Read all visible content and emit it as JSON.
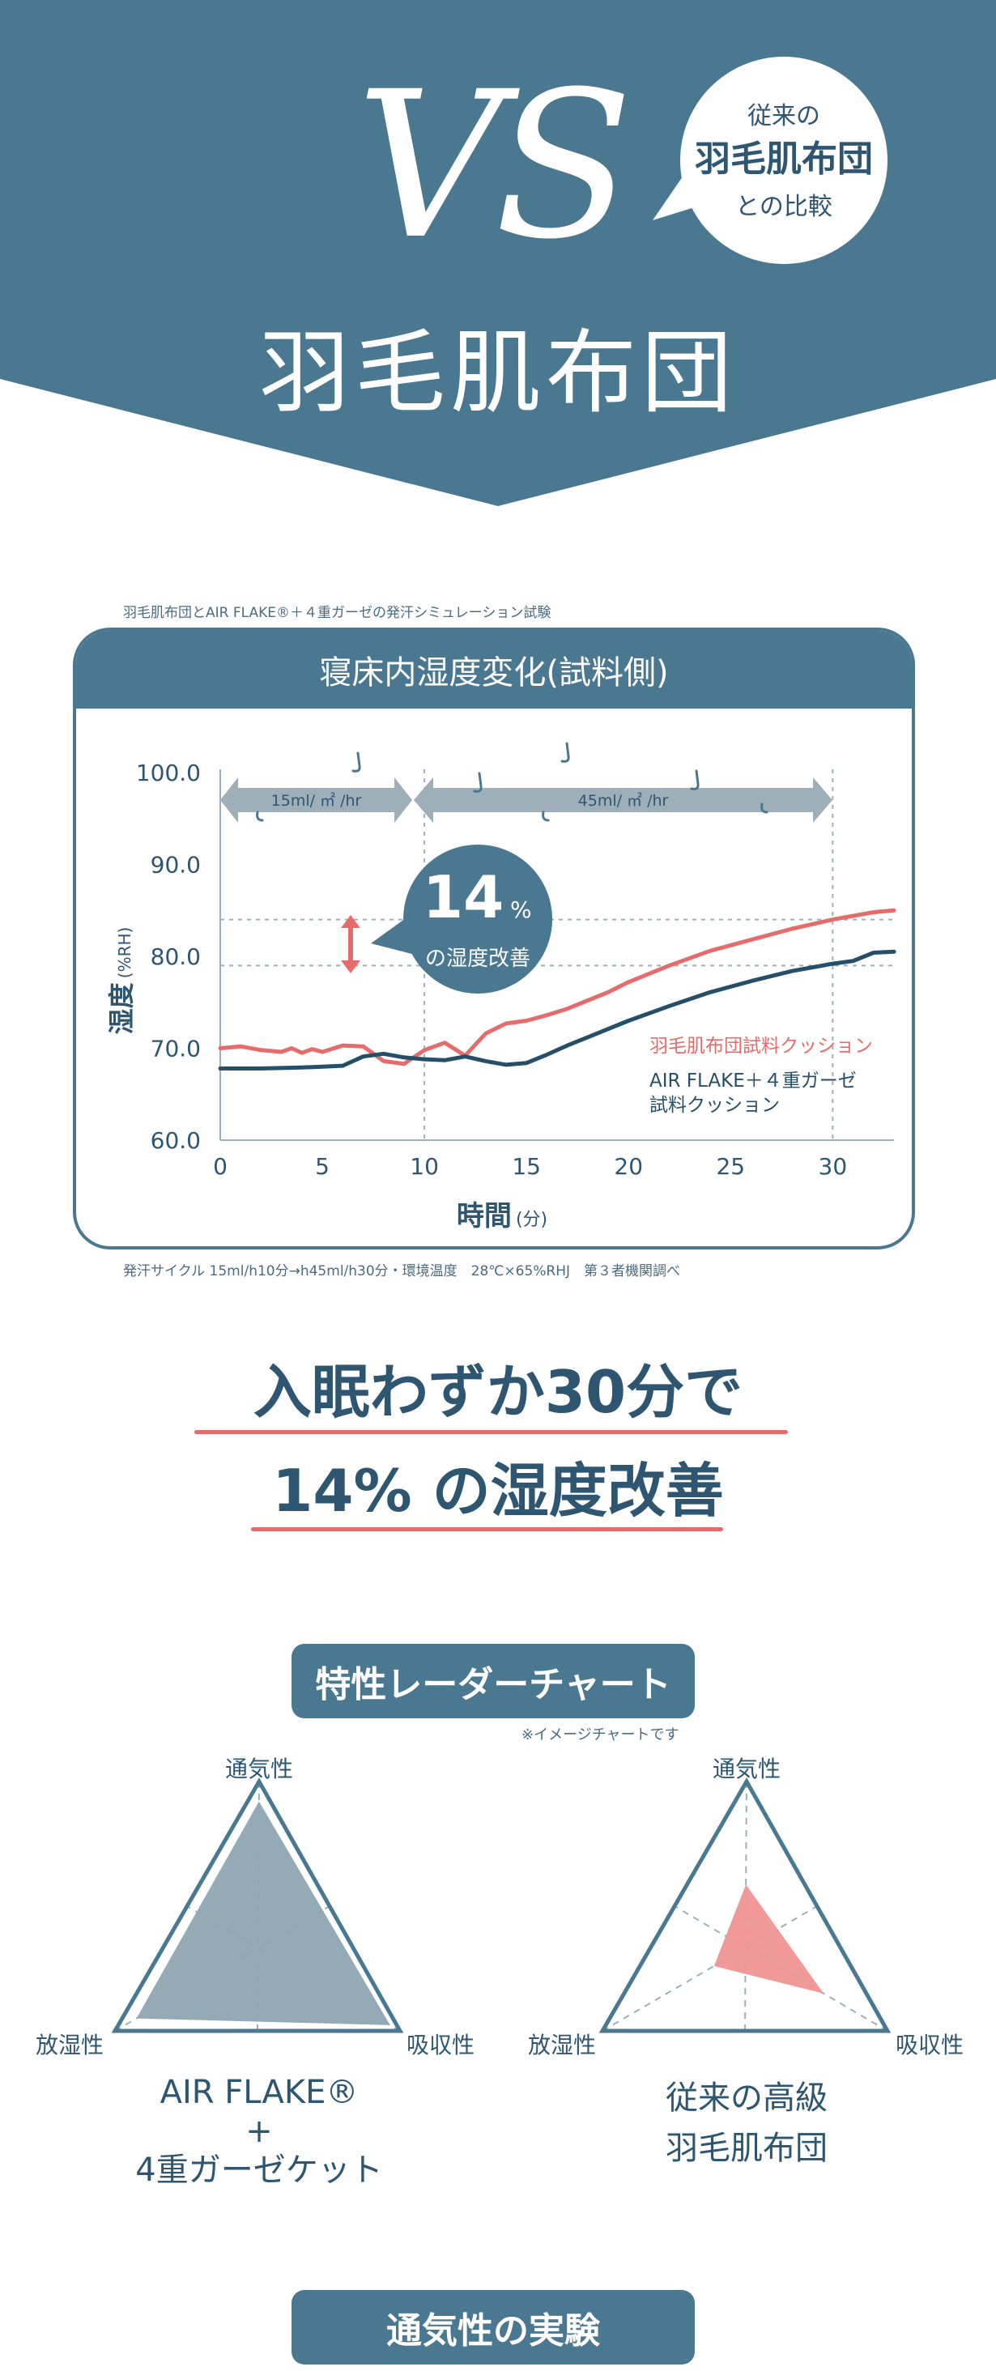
{
  "hero": {
    "vs": "VS",
    "bubble_line1": "従来の",
    "bubble_line2": "羽毛肌布団",
    "bubble_line3": "との比較",
    "title": "羽毛肌布団"
  },
  "humidity_test": {
    "caption_top": "羽毛肌布団とAIR FLAKE®＋４重ガーゼの発汗シミュレーション試験",
    "panel_title": "寝床内湿度変化(試料側)",
    "callout_big": "14",
    "callout_unit": "%",
    "callout_text": "の湿度改善",
    "phase1_label": "15ml/ ㎡ /hr",
    "phase2_label": "45ml/ ㎡ /hr",
    "legend_red": "羽毛肌布団試料クッション",
    "legend_navy_line1": "AIR FLAKE＋４重ガーゼ",
    "legend_navy_line2": "試料クッション",
    "footnote": "発汗サイクル 15ml/h10分→h45ml/h30分・環境温度　28℃×65%RHJ　第３者機関調べ"
  },
  "chart_data": {
    "type": "line",
    "title": "寝床内湿度変化(試料側)",
    "xlabel": "時間",
    "xlabel_unit": "(分)",
    "ylabel": "湿度",
    "ylabel_unit": "(%RH)",
    "xlim": [
      0,
      33
    ],
    "ylim": [
      60,
      100
    ],
    "x_ticks": [
      "0",
      "5",
      "10",
      "15",
      "20",
      "25",
      "30"
    ],
    "y_ticks": [
      "60.0",
      "70.0",
      "80.0",
      "90.0",
      "100.0"
    ],
    "grid": "dashed reference lines at 79 and 84 %RH, and at 10 and 30 min",
    "series": [
      {
        "name": "羽毛肌布団試料クッション",
        "color": "#e46d6b",
        "points": [
          [
            0,
            70
          ],
          [
            1,
            70.2
          ],
          [
            2,
            69.8
          ],
          [
            3,
            69.6
          ],
          [
            3.5,
            70
          ],
          [
            4,
            69.5
          ],
          [
            4.5,
            69.9
          ],
          [
            5,
            69.6
          ],
          [
            6,
            70.3
          ],
          [
            7,
            70.2
          ],
          [
            8,
            68.6
          ],
          [
            9,
            68.3
          ],
          [
            10,
            69.8
          ],
          [
            11,
            70.6
          ],
          [
            12,
            69.2
          ],
          [
            13,
            71.6
          ],
          [
            14,
            72.7
          ],
          [
            15,
            73
          ],
          [
            16,
            73.6
          ],
          [
            17,
            74.3
          ],
          [
            18,
            75.2
          ],
          [
            19,
            76.1
          ],
          [
            20,
            77.2
          ],
          [
            22,
            79
          ],
          [
            24,
            80.6
          ],
          [
            26,
            81.8
          ],
          [
            28,
            83
          ],
          [
            30,
            84
          ],
          [
            32,
            84.8
          ],
          [
            33,
            85
          ]
        ]
      },
      {
        "name": "AIR FLAKE＋４重ガーゼ試料クッション",
        "color": "#254f68",
        "points": [
          [
            0,
            67.8
          ],
          [
            2,
            67.8
          ],
          [
            4,
            67.9
          ],
          [
            5,
            68
          ],
          [
            6,
            68.1
          ],
          [
            7,
            69.1
          ],
          [
            8,
            69.4
          ],
          [
            9,
            69
          ],
          [
            10,
            68.8
          ],
          [
            11,
            68.7
          ],
          [
            12,
            69.1
          ],
          [
            13,
            68.6
          ],
          [
            14,
            68.2
          ],
          [
            15,
            68.4
          ],
          [
            16,
            69.3
          ],
          [
            17,
            70.3
          ],
          [
            18,
            71.2
          ],
          [
            19,
            72.1
          ],
          [
            20,
            73
          ],
          [
            22,
            74.6
          ],
          [
            24,
            76.1
          ],
          [
            26,
            77.3
          ],
          [
            28,
            78.4
          ],
          [
            30,
            79.2
          ],
          [
            31,
            79.5
          ],
          [
            32,
            80.4
          ],
          [
            33,
            80.5
          ]
        ]
      }
    ]
  },
  "headline": {
    "line1": "入眠わずか30分で",
    "line2": "14% の湿度改善"
  },
  "radar": {
    "section_title": "特性レーダーチャート",
    "note": "※イメージチャートです",
    "axes": [
      "通気性",
      "放湿性",
      "吸収性"
    ],
    "left_name_line1": "AIR FLAKE®",
    "left_name_line2": "+",
    "left_name_line3": "4重ガーゼケット",
    "right_name_line1": "従来の高級",
    "right_name_line2": "羽毛肌布団",
    "left_values": [
      0.88,
      0.85,
      0.93
    ],
    "right_values": [
      0.38,
      0.22,
      0.55
    ],
    "left_color": "#8ea5b3",
    "right_color": "#f09493"
  },
  "bottom": {
    "section_title": "通気性の実験"
  },
  "colors": {
    "brand_blue": "#4a7891",
    "navy": "#2f5670",
    "accent_red": "#e46d6b",
    "arrow_gray": "#9eafba"
  }
}
